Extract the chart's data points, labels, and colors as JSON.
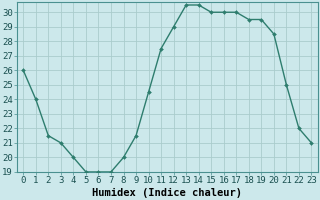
{
  "x": [
    0,
    1,
    2,
    3,
    4,
    5,
    6,
    7,
    8,
    9,
    10,
    11,
    12,
    13,
    14,
    15,
    16,
    17,
    18,
    19,
    20,
    21,
    22,
    23
  ],
  "y": [
    26,
    24,
    21.5,
    21,
    20,
    19,
    19,
    19,
    20,
    21.5,
    24.5,
    27.5,
    29,
    30.5,
    30.5,
    30,
    30,
    30,
    29.5,
    29.5,
    28.5,
    25,
    22,
    21
  ],
  "line_color": "#2e7d6e",
  "marker": "D",
  "marker_size": 2.0,
  "bg_color": "#cce8eb",
  "grid_color": "#aacccc",
  "xlabel": "Humidex (Indice chaleur)",
  "ylim": [
    19,
    30.7
  ],
  "xlim": [
    -0.5,
    23.5
  ],
  "yticks": [
    19,
    20,
    21,
    22,
    23,
    24,
    25,
    26,
    27,
    28,
    29,
    30
  ],
  "xticks": [
    0,
    1,
    2,
    3,
    4,
    5,
    6,
    7,
    8,
    9,
    10,
    11,
    12,
    13,
    14,
    15,
    16,
    17,
    18,
    19,
    20,
    21,
    22,
    23
  ],
  "xtick_labels": [
    "0",
    "1",
    "2",
    "3",
    "4",
    "5",
    "6",
    "7",
    "8",
    "9",
    "10",
    "11",
    "12",
    "13",
    "14",
    "15",
    "16",
    "17",
    "18",
    "19",
    "20",
    "21",
    "22",
    "23"
  ],
  "xlabel_fontsize": 7.5,
  "tick_fontsize": 6.5,
  "line_width": 1.0,
  "spine_color": "#4a9090"
}
